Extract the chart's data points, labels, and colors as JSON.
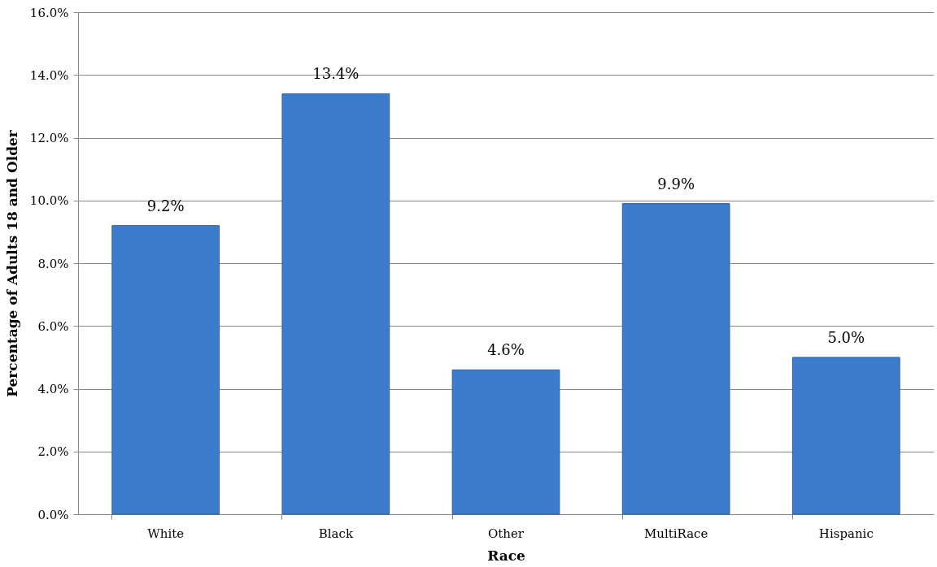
{
  "chart_data": {
    "type": "bar",
    "xlabel": "Race",
    "ylabel": "Percentage of Adults 18 and Older",
    "categories": [
      "White",
      "Black",
      "Other",
      "MultiRace",
      "Hispanic"
    ],
    "values": [
      9.2,
      13.4,
      4.6,
      9.9,
      5.0
    ],
    "value_labels": [
      "9.2%",
      "13.4%",
      "4.6%",
      "9.9%",
      "5.0%"
    ],
    "color": "#3d7ccc",
    "ylim": [
      0,
      16
    ],
    "yticks": [
      {
        "value": 0,
        "label": "0.0%"
      },
      {
        "value": 2,
        "label": "2.0%"
      },
      {
        "value": 4,
        "label": "4.0%"
      },
      {
        "value": 6,
        "label": "6.0%"
      },
      {
        "value": 8,
        "label": "8.0%"
      },
      {
        "value": 10,
        "label": "10.0%"
      },
      {
        "value": 12,
        "label": "12.0%"
      },
      {
        "value": 14,
        "label": "14.0%"
      },
      {
        "value": 16,
        "label": "16.0%"
      }
    ],
    "grid": "y"
  }
}
